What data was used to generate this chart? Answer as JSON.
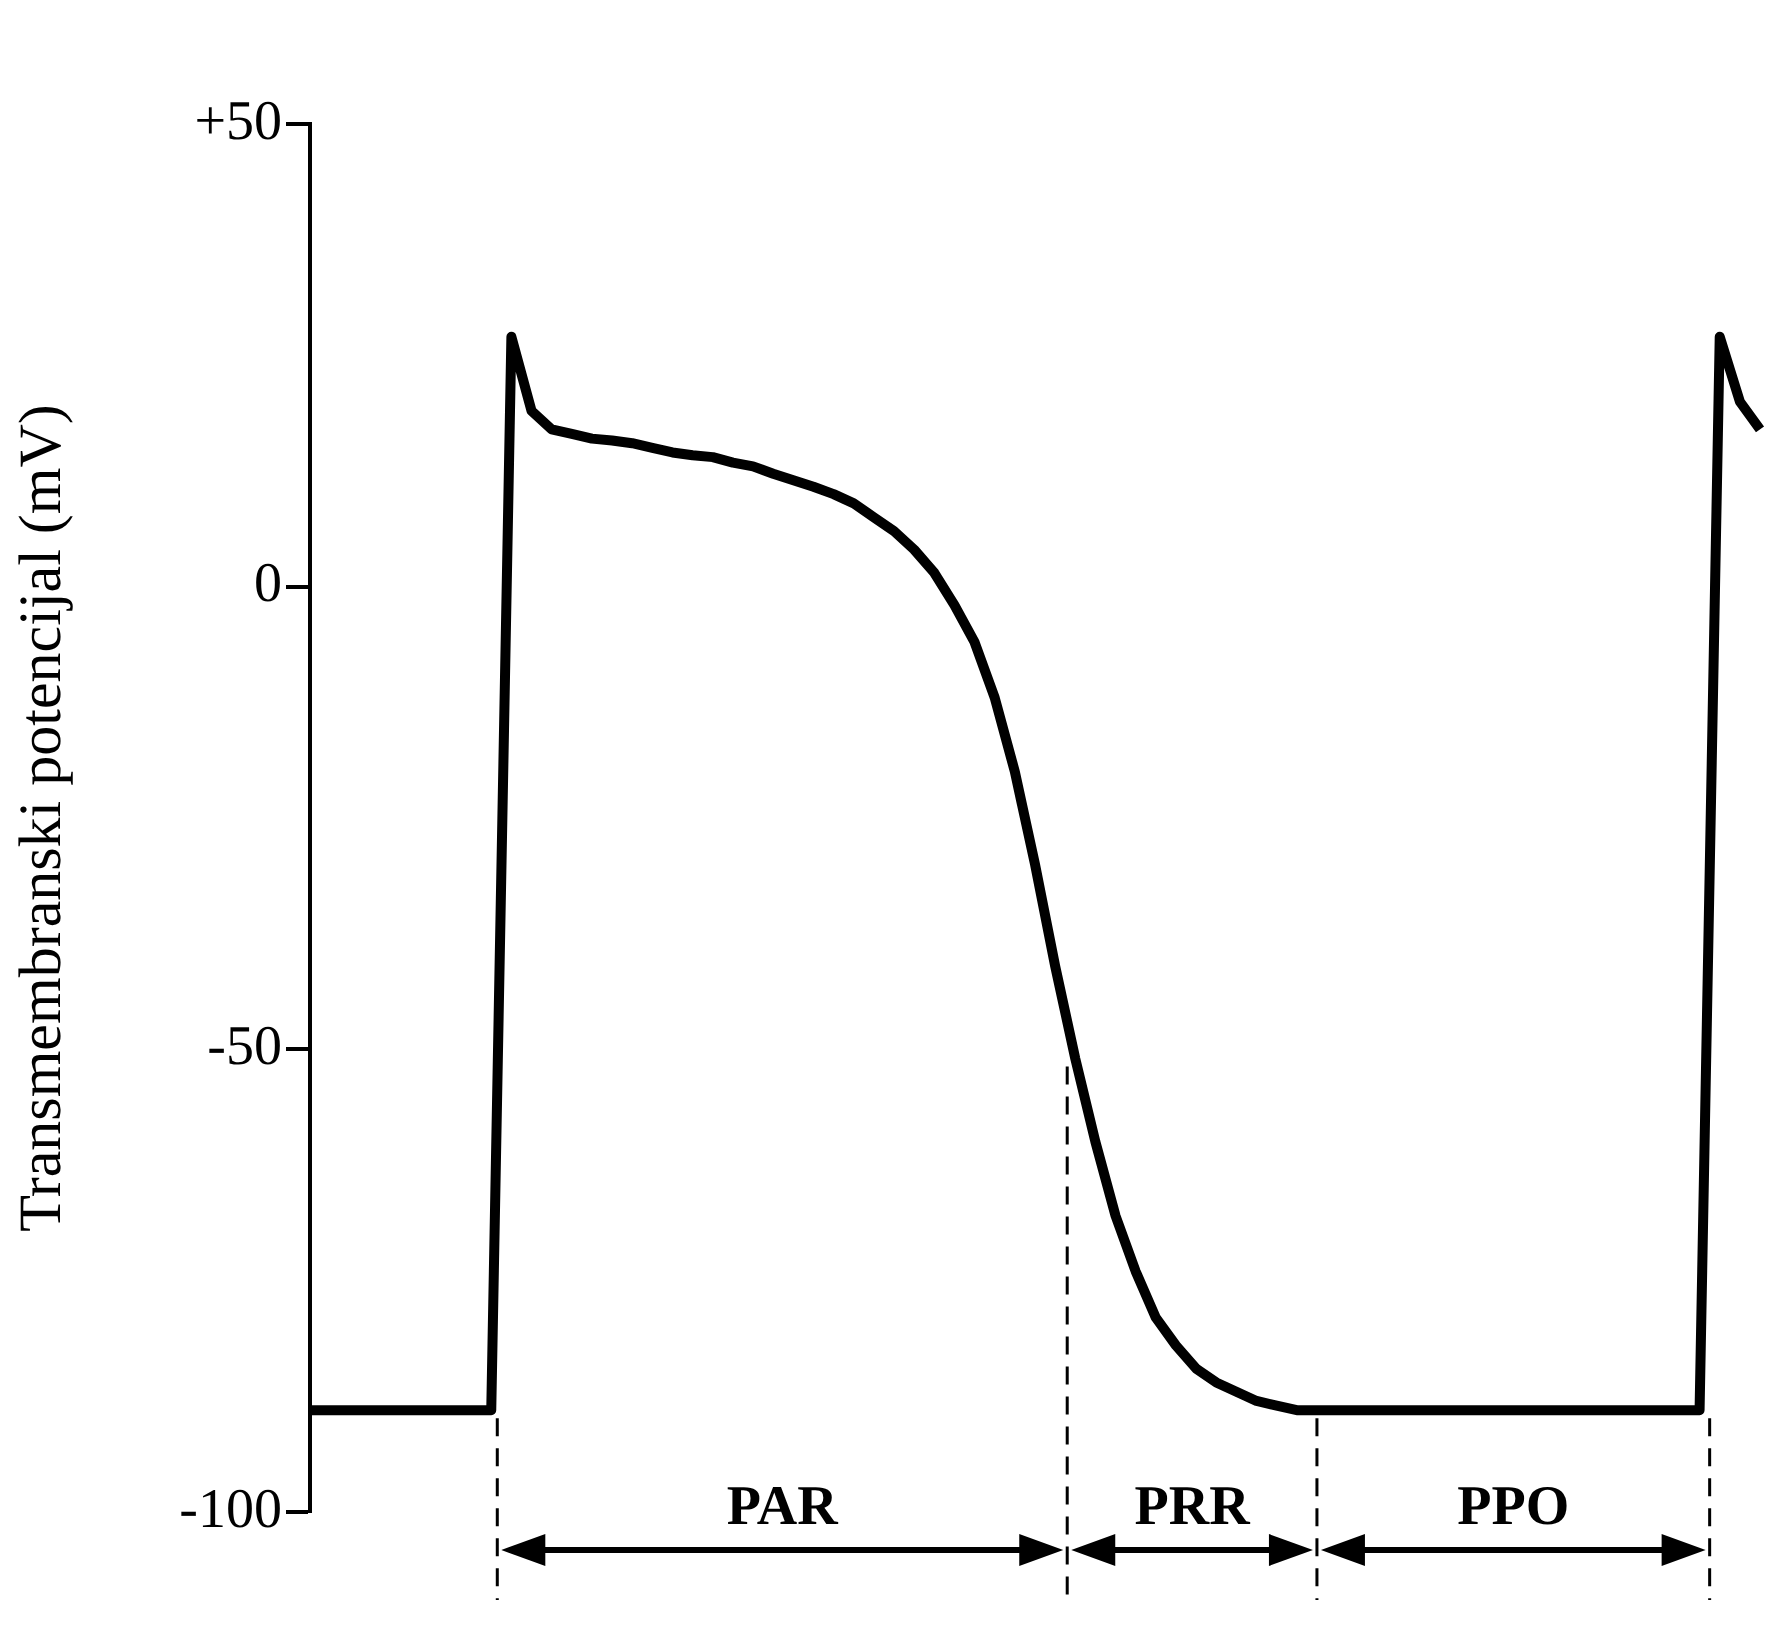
{
  "chart_data": {
    "type": "line",
    "ylabel": "Transmembranski potencijal (mV)",
    "categories": [
      null,
      null,
      null,
      null,
      null,
      null,
      null,
      null,
      null,
      null,
      null,
      null,
      null,
      null,
      null,
      null,
      null,
      null,
      null,
      null,
      null,
      null,
      null,
      null,
      null,
      null,
      null,
      null,
      null,
      null,
      null,
      null,
      null,
      null,
      null,
      null,
      null,
      null,
      null,
      null,
      null,
      null,
      null,
      null,
      null,
      null,
      null,
      null,
      null,
      null,
      null,
      null,
      null,
      null,
      null,
      null,
      null,
      null,
      null,
      null,
      null,
      null,
      null,
      null,
      null,
      null,
      null,
      null,
      null,
      null,
      null,
      null,
      null
    ],
    "series": [
      {
        "color": "#000000",
        "values": [
          -89,
          -89,
          -89,
          -89,
          -89,
          -89,
          -89,
          -89,
          -89,
          -89,
          27,
          19,
          17,
          16.5,
          16,
          15.8,
          15.5,
          15,
          14.5,
          14.2,
          14,
          13.4,
          13,
          12.2,
          11.5,
          10.8,
          10,
          9,
          7.5,
          6,
          4,
          1.5,
          -2,
          -6,
          -12,
          -20,
          -30,
          -41,
          -51,
          -60,
          -68,
          -74,
          -79,
          -82,
          -84.5,
          -86,
          -87,
          -88,
          -88.5,
          -89,
          -89,
          -89,
          -89,
          -89,
          -89,
          -89,
          -89,
          -89,
          -89,
          -89,
          -89,
          -89,
          -89,
          -89,
          -89,
          -89,
          -89,
          -89,
          -89,
          -89,
          27,
          20,
          17
        ]
      }
    ],
    "ylim": [
      -100,
      50
    ],
    "yticks": [
      {
        "value": 50,
        "label": "+50"
      },
      0,
      -50,
      -100
    ],
    "annotations": [
      "PAR",
      "PRR",
      "PPO"
    ],
    "tick_labels": "y",
    "legend": false,
    "marker": "none",
    "line_style": "solid"
  }
}
